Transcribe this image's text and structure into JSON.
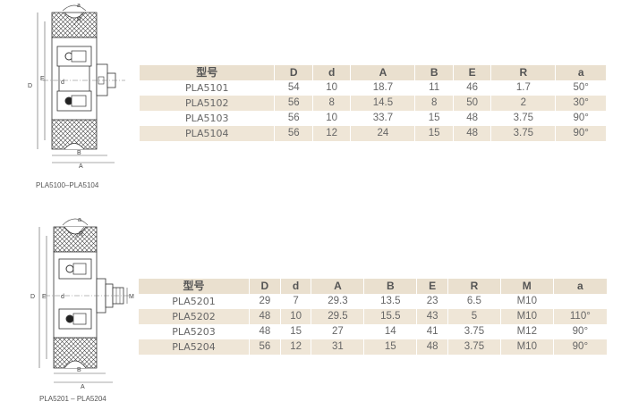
{
  "section1": {
    "caption": "PLA5100–PLA5104",
    "drawing_labels": {
      "a": "a",
      "R": "R",
      "D": "D",
      "E": "E",
      "d": "d",
      "A": "A",
      "B": "B"
    },
    "headers": [
      "型号",
      "D",
      "d",
      "A",
      "B",
      "E",
      "R",
      "a"
    ],
    "rows": [
      [
        "PLA5101",
        "54",
        "10",
        "18.7",
        "11",
        "46",
        "1.7",
        "50°"
      ],
      [
        "PLA5102",
        "56",
        "8",
        "14.5",
        "8",
        "50",
        "2",
        "30°"
      ],
      [
        "PLA5103",
        "56",
        "10",
        "33.7",
        "15",
        "48",
        "3.75",
        "90°"
      ],
      [
        "PLA5104",
        "56",
        "12",
        "24",
        "15",
        "48",
        "3.75",
        "90°"
      ]
    ]
  },
  "section2": {
    "caption": "PLA5201 – PLA5204",
    "drawing_labels": {
      "a": "a",
      "R": "R",
      "D": "D",
      "E": "E",
      "d": "d",
      "A": "A",
      "B": "B",
      "M": "M"
    },
    "headers": [
      "型号",
      "D",
      "d",
      "A",
      "B",
      "E",
      "R",
      "M",
      "a"
    ],
    "rows": [
      [
        "PLA5201",
        "29",
        "7",
        "29.3",
        "13.5",
        "23",
        "6.5",
        "M10",
        ""
      ],
      [
        "PLA5202",
        "48",
        "10",
        "29.5",
        "15.5",
        "43",
        "5",
        "M10",
        "110°"
      ],
      [
        "PLA5203",
        "48",
        "15",
        "27",
        "14",
        "41",
        "3.75",
        "M12",
        "90°"
      ],
      [
        "PLA5204",
        "56",
        "12",
        "31",
        "15",
        "48",
        "3.75",
        "M10",
        "90°"
      ]
    ]
  },
  "colors": {
    "header_bg": "#eae0cf",
    "stripe_bg": "#efe6d7",
    "text": "#666666"
  }
}
